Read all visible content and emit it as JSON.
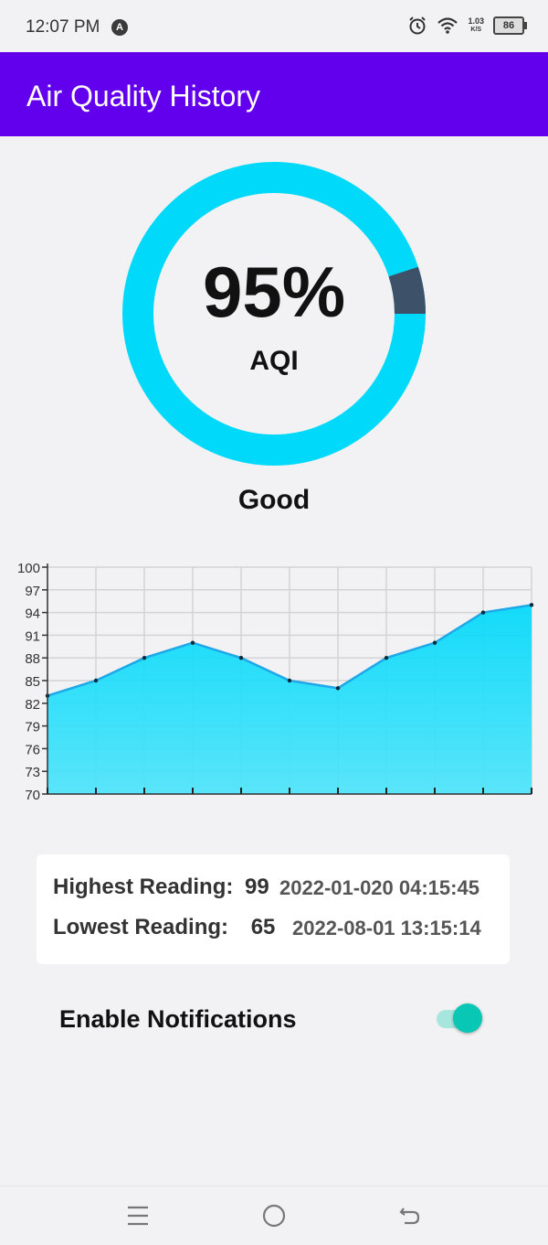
{
  "status_bar": {
    "time": "12:07 PM",
    "app_icon_letter": "A",
    "net_speed_value": "1.03",
    "net_speed_unit": "K/S",
    "battery": "86",
    "icons": [
      "alarm-icon",
      "wifi-icon",
      "battery-icon"
    ]
  },
  "app_bar": {
    "title": "Air Quality History"
  },
  "gauge": {
    "value_text": "95%",
    "unit": "AQI",
    "fraction": 0.95,
    "fill_color": "#00d9fa",
    "remainder_color": "#3d5269"
  },
  "quality": {
    "label": "Good"
  },
  "chart_data": {
    "type": "area",
    "x": [
      0,
      1,
      2,
      3,
      4,
      5,
      6,
      7,
      8,
      9,
      10
    ],
    "values": [
      83,
      85,
      88,
      90,
      88,
      85,
      84,
      88,
      90,
      94,
      95
    ],
    "ylim": [
      70,
      100
    ],
    "yticks": [
      "70",
      "73",
      "76",
      "79",
      "82",
      "85",
      "88",
      "91",
      "94",
      "97",
      "100"
    ],
    "grid": true,
    "fill_color": "#00d9fa"
  },
  "readings": {
    "highest_label": "Highest Reading:",
    "highest_value": "99",
    "highest_time": "2022-01-020 04:15:45",
    "lowest_label": "Lowest Reading:",
    "lowest_value": "65",
    "lowest_time": "2022-08-01 13:15:14"
  },
  "notifications": {
    "label": "Enable Notifications",
    "enabled": true
  },
  "nav": {
    "icons": [
      "menu-icon",
      "home-icon",
      "back-icon"
    ]
  }
}
